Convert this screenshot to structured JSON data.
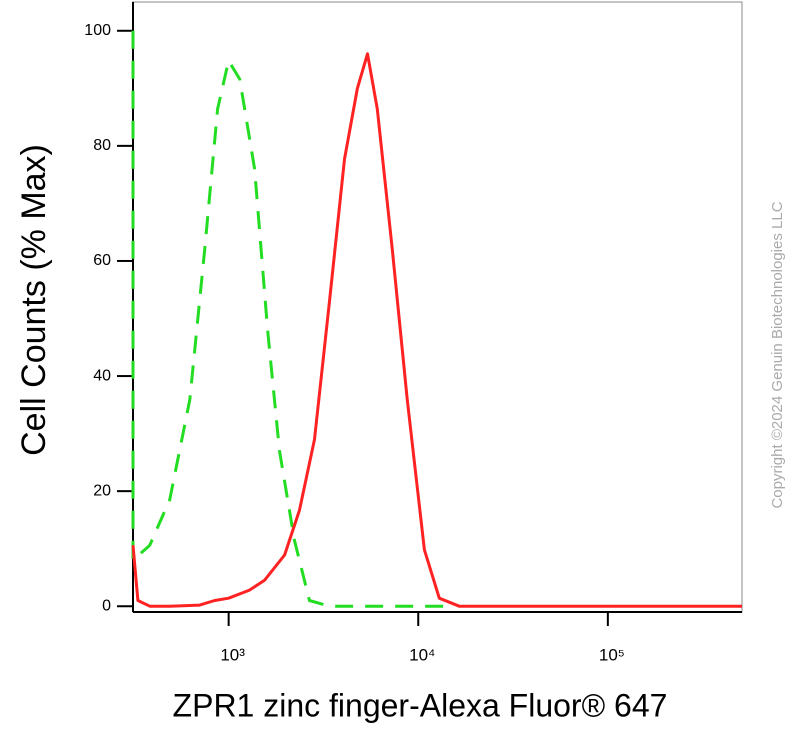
{
  "chart_data": {
    "type": "line",
    "x_label": "ZPR1 zinc finger-Alexa Fluor® 647",
    "y_label": "Cell Counts (% Max)",
    "copyright": "Copyright ©2024 Genuin Biotechnologies LLC",
    "xscale": "log",
    "xlim": [
      313,
      510000
    ],
    "ylim": [
      -1,
      105
    ],
    "xticks": [
      {
        "value": 1000,
        "label": "10³"
      },
      {
        "value": 10000,
        "label": "10⁴"
      },
      {
        "value": 100000,
        "label": "10⁵"
      }
    ],
    "yticks": [
      0,
      20,
      40,
      60,
      80,
      100
    ],
    "grid": false,
    "series": [
      {
        "color": "#22dd22",
        "dash": true,
        "x": [
          313,
          313,
          384,
          489,
          624,
          748,
          875,
          1000,
          1143,
          1370,
          1604,
          1854,
          2222,
          2667,
          3402,
          14500
        ],
        "values": [
          100,
          8,
          10.6,
          18.5,
          35.9,
          62,
          86.4,
          94.8,
          91.6,
          76,
          48,
          27,
          11.5,
          1,
          0,
          0
        ]
      },
      {
        "color": "#ff2222",
        "dash": false,
        "x": [
          313,
          332,
          384,
          489,
          703,
          844,
          1000,
          1289,
          1546,
          1972,
          2365,
          2838,
          3402,
          4083,
          4776,
          5397,
          6085,
          7297,
          8750,
          10770,
          12910,
          16440,
          510000
        ],
        "values": [
          10.6,
          1,
          0,
          0,
          0.2,
          1,
          1.4,
          2.8,
          4.5,
          8.9,
          16.7,
          29,
          53,
          77.7,
          90,
          96,
          86.4,
          62,
          36,
          9.8,
          1.4,
          0,
          0
        ]
      }
    ]
  }
}
